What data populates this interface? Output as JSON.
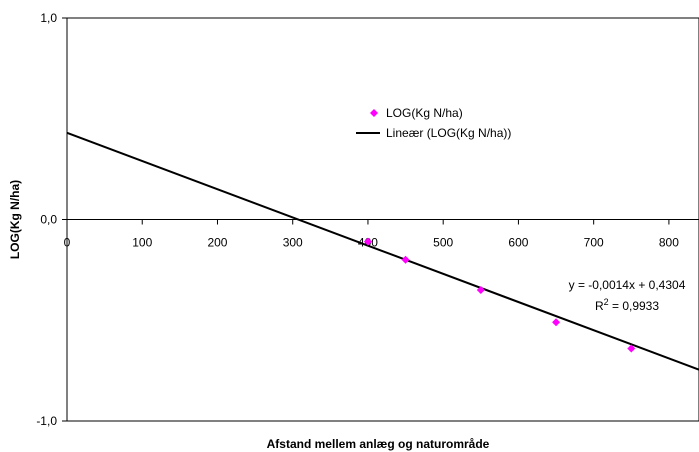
{
  "chart_data": {
    "type": "scatter",
    "xlabel": "Afstand mellem anlæg og naturområde",
    "ylabel": "LOG(Kg N/ha)",
    "xlim": [
      0,
      840
    ],
    "ylim": [
      -1.0,
      1.0
    ],
    "x_ticks": [
      0,
      100,
      200,
      300,
      400,
      500,
      600,
      700,
      800
    ],
    "x_tick_labels": [
      "0",
      "100",
      "200",
      "300",
      "400",
      "500",
      "600",
      "700",
      "800"
    ],
    "y_ticks": [
      -1.0,
      0.0,
      1.0
    ],
    "y_tick_labels": [
      "-1,0",
      "0,0",
      "1,0"
    ],
    "grid": false,
    "legend_position": "center-right",
    "series": [
      {
        "name": "LOG(Kg N/ha)",
        "kind": "points",
        "color": "#ff00ff",
        "marker": "diamond",
        "x": [
          400,
          450,
          550,
          650,
          750
        ],
        "y": [
          -0.11,
          -0.2,
          -0.35,
          -0.51,
          -0.64
        ]
      },
      {
        "name": "Lineær (LOG(Kg N/ha))",
        "kind": "trendline",
        "color": "#000000",
        "slope": -0.0014,
        "intercept": 0.4304
      }
    ],
    "annotations": {
      "equation": "y = -0,0014x + 0,4304",
      "r2_prefix": "R",
      "r2_sup": "2",
      "r2_value": " = 0,9933"
    }
  }
}
